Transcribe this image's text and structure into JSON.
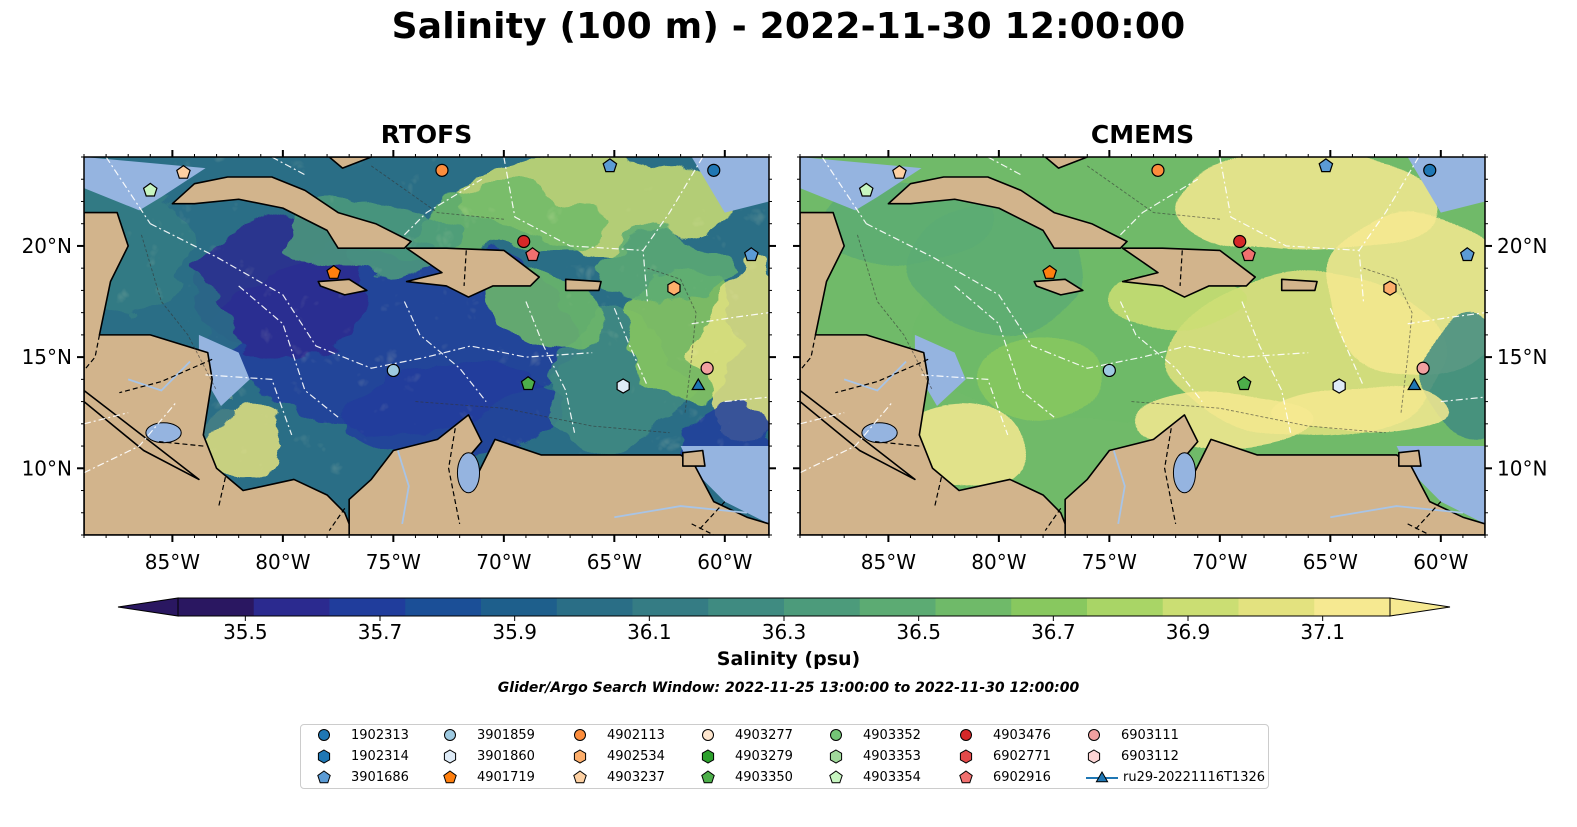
{
  "title": "Salinity (100 m) - 2022-11-30 12:00:00",
  "panels": [
    {
      "title": "RTOFS",
      "ramp": 0.38
    },
    {
      "title": "CMEMS",
      "ramp": 0.72
    }
  ],
  "map_extent": {
    "lon": [
      -89,
      -58
    ],
    "lat": [
      7,
      24
    ]
  },
  "lon_ticks": [
    {
      "value": -85,
      "label": "85°W"
    },
    {
      "value": -80,
      "label": "80°W"
    },
    {
      "value": -75,
      "label": "75°W"
    },
    {
      "value": -70,
      "label": "70°W"
    },
    {
      "value": -65,
      "label": "65°W"
    },
    {
      "value": -60,
      "label": "60°W"
    }
  ],
  "lat_ticks": [
    {
      "value": 20,
      "label": "20°N"
    },
    {
      "value": 15,
      "label": "15°N"
    },
    {
      "value": 10,
      "label": "10°N"
    }
  ],
  "colorbar": {
    "label": "Salinity (psu)",
    "min": 35.4,
    "max": 37.2,
    "ticks": [
      "35.5",
      "35.7",
      "35.9",
      "36.1",
      "36.3",
      "36.5",
      "36.7",
      "36.9",
      "37.1"
    ],
    "colors": [
      "#2a1761",
      "#2b2a8f",
      "#203d9c",
      "#1b4f97",
      "#1e5f8c",
      "#2a6e86",
      "#357c84",
      "#3f8b81",
      "#4c9b7b",
      "#5cab73",
      "#6fba69",
      "#88c85f",
      "#a9d566",
      "#cbde73",
      "#e3e27f",
      "#f6e991"
    ]
  },
  "search_window": "Glider/Argo Search Window: 2022-11-25 13:00:00 to 2022-11-30 12:00:00",
  "colors": {
    "land": "#d2b48c",
    "shelf": "#95b4e0",
    "border": "#000000"
  },
  "legend": [
    {
      "label": "1902313",
      "marker": "circle",
      "color": "#1f77b4"
    },
    {
      "label": "1902314",
      "marker": "hexagon",
      "color": "#1f77b4"
    },
    {
      "label": "3901686",
      "marker": "pentagon",
      "color": "#5b9bd5"
    },
    {
      "label": "3901859",
      "marker": "circle",
      "color": "#9ecae1"
    },
    {
      "label": "3901860",
      "marker": "hexagon",
      "color": "#deebf7"
    },
    {
      "label": "4901719",
      "marker": "pentagon",
      "color": "#ff7f0e"
    },
    {
      "label": "4902113",
      "marker": "circle",
      "color": "#fd8d3c"
    },
    {
      "label": "4902534",
      "marker": "hexagon",
      "color": "#fdae6b"
    },
    {
      "label": "4903237",
      "marker": "pentagon",
      "color": "#fdd0a2"
    },
    {
      "label": "4903277",
      "marker": "circle",
      "color": "#fee6ce"
    },
    {
      "label": "4903279",
      "marker": "hexagon",
      "color": "#2ca02c"
    },
    {
      "label": "4903350",
      "marker": "pentagon",
      "color": "#4daf4a"
    },
    {
      "label": "4903352",
      "marker": "circle",
      "color": "#74c476"
    },
    {
      "label": "4903353",
      "marker": "hexagon",
      "color": "#a1d99b"
    },
    {
      "label": "4903354",
      "marker": "pentagon",
      "color": "#c7f5c0"
    },
    {
      "label": "4903476",
      "marker": "circle",
      "color": "#d62728"
    },
    {
      "label": "6902771",
      "marker": "hexagon",
      "color": "#e34a4a"
    },
    {
      "label": "6902916",
      "marker": "pentagon",
      "color": "#f0706f"
    },
    {
      "label": "6903111",
      "marker": "circle",
      "color": "#f2a0a0"
    },
    {
      "label": "6903112",
      "marker": "hexagon",
      "color": "#fcd5d5"
    },
    {
      "label": "ru29-20221116T1326",
      "marker": "triangle-line",
      "color": "#1f77b4"
    }
  ],
  "floats": [
    {
      "id": "4903354",
      "lon": -86.0,
      "lat": 22.5
    },
    {
      "id": "4903237",
      "lon": -84.5,
      "lat": 23.3
    },
    {
      "id": "4902113",
      "lon": -72.8,
      "lat": 23.4
    },
    {
      "id": "3901686",
      "lon": -65.2,
      "lat": 23.6
    },
    {
      "id": "1902313",
      "lon": -60.5,
      "lat": 23.4
    },
    {
      "id": "4903476",
      "lon": -69.1,
      "lat": 20.2
    },
    {
      "id": "6902916",
      "lon": -68.7,
      "lat": 19.6
    },
    {
      "id": "3901686",
      "lon": -58.8,
      "lat": 19.6
    },
    {
      "id": "4901719",
      "lon": -77.7,
      "lat": 18.8
    },
    {
      "id": "4902534",
      "lon": -62.3,
      "lat": 18.1
    },
    {
      "id": "3901859",
      "lon": -75.0,
      "lat": 14.4
    },
    {
      "id": "4903350",
      "lon": -68.9,
      "lat": 13.8
    },
    {
      "id": "3901860",
      "lon": -64.6,
      "lat": 13.7
    },
    {
      "id": "6903111",
      "lon": -60.8,
      "lat": 14.5
    },
    {
      "id": "ru29-20221116T1326",
      "lon": -61.2,
      "lat": 13.7
    }
  ]
}
